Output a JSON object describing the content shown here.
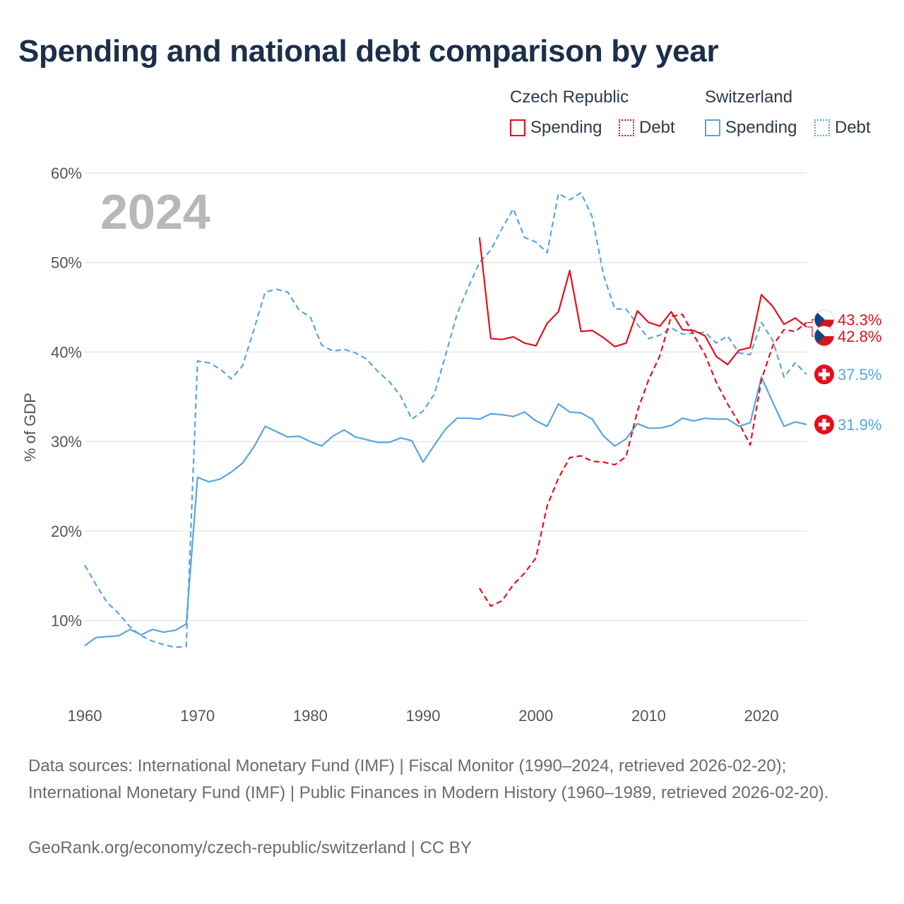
{
  "title": "Spending and national debt comparison by year",
  "legend": {
    "groups": [
      {
        "country": "Czech Republic",
        "color": "#e3101b",
        "items": [
          {
            "label": "Spending",
            "style": "solid"
          },
          {
            "label": "Debt",
            "style": "dotted"
          }
        ]
      },
      {
        "country": "Switzerland",
        "color": "#5aa4e3",
        "items": [
          {
            "label": "Spending",
            "style": "solid"
          },
          {
            "label": "Debt",
            "style": "dotted"
          }
        ]
      }
    ]
  },
  "year_label": "2024",
  "footer": {
    "sources": "Data sources: International Monetary Fund (IMF) | Fiscal Monitor (1990–2024, retrieved 2026-02-20); International Monetary Fund (IMF) | Public Finances in Modern History (1960–1989, retrieved 2026-02-20).",
    "attribution": "GeoRank.org/economy/czech-republic/switzerland | CC BY"
  },
  "chart_data": {
    "type": "line",
    "ylabel": "% of GDP",
    "ylim": [
      2,
      60
    ],
    "xlim": [
      1960,
      2024
    ],
    "yticks": [
      10,
      20,
      30,
      40,
      50,
      60
    ],
    "ytick_labels": [
      "10%",
      "20%",
      "30%",
      "40%",
      "50%",
      "60%"
    ],
    "xticks": [
      1960,
      1970,
      1980,
      1990,
      2000,
      2010,
      2020
    ],
    "xtick_labels": [
      "1960",
      "1970",
      "1980",
      "1990",
      "2000",
      "2010",
      "2020"
    ],
    "grid": true,
    "series": [
      {
        "name": "Switzerland Debt",
        "country": "Switzerland",
        "kind": "Debt",
        "color": "#5aa4e3",
        "dash": "8,5",
        "x": [
          1960,
          1961,
          1962,
          1963,
          1964,
          1965,
          1966,
          1967,
          1968,
          1969,
          1970,
          1971,
          1972,
          1973,
          1974,
          1975,
          1976,
          1977,
          1978,
          1979,
          1980,
          1981,
          1982,
          1983,
          1984,
          1985,
          1986,
          1987,
          1988,
          1989,
          1990,
          1991,
          1992,
          1993,
          1994,
          1995,
          1996,
          1997,
          1998,
          1999,
          2000,
          2001,
          2002,
          2003,
          2004,
          2005,
          2006,
          2007,
          2008,
          2009,
          2010,
          2011,
          2012,
          2013,
          2014,
          2015,
          2016,
          2017,
          2018,
          2019,
          2020,
          2021,
          2022,
          2023,
          2024
        ],
        "values": [
          16.2,
          14.0,
          12.0,
          10.8,
          9.3,
          8.3,
          7.7,
          7.3,
          7.0,
          7.1,
          39.0,
          38.8,
          38.1,
          37.0,
          38.5,
          42.5,
          46.7,
          47.0,
          46.7,
          44.7,
          43.9,
          40.8,
          40.1,
          40.3,
          39.9,
          39.2,
          37.8,
          36.7,
          35.1,
          32.5,
          33.4,
          35.3,
          39.7,
          44.2,
          47.2,
          50.0,
          51.4,
          53.8,
          56.0,
          52.8,
          52.3,
          51.1,
          57.7,
          57.0,
          57.8,
          55.1,
          48.6,
          44.8,
          44.8,
          43.1,
          41.5,
          41.9,
          42.7,
          42.0,
          42.1,
          42.2,
          41.0,
          41.8,
          39.9,
          39.7,
          43.3,
          41.3,
          37.2,
          38.8,
          37.5
        ],
        "end_label": "37.5%"
      },
      {
        "name": "Switzerland Spending",
        "country": "Switzerland",
        "kind": "Spending",
        "color": "#5aa4e3",
        "dash": "",
        "x": [
          1960,
          1961,
          1962,
          1963,
          1964,
          1965,
          1966,
          1967,
          1968,
          1969,
          1970,
          1971,
          1972,
          1973,
          1974,
          1975,
          1976,
          1977,
          1978,
          1979,
          1980,
          1981,
          1982,
          1983,
          1984,
          1985,
          1986,
          1987,
          1988,
          1989,
          1990,
          1991,
          1992,
          1993,
          1994,
          1995,
          1996,
          1997,
          1998,
          1999,
          2000,
          2001,
          2002,
          2003,
          2004,
          2005,
          2006,
          2007,
          2008,
          2009,
          2010,
          2011,
          2012,
          2013,
          2014,
          2015,
          2016,
          2017,
          2018,
          2019,
          2020,
          2021,
          2022,
          2023,
          2024
        ],
        "values": [
          7.2,
          8.1,
          8.2,
          8.3,
          9.0,
          8.4,
          9.0,
          8.7,
          8.9,
          9.6,
          26.0,
          25.5,
          25.8,
          26.6,
          27.6,
          29.4,
          31.7,
          31.1,
          30.5,
          30.6,
          30.0,
          29.5,
          30.6,
          31.3,
          30.5,
          30.2,
          29.9,
          29.9,
          30.4,
          30.1,
          27.7,
          29.6,
          31.4,
          32.6,
          32.6,
          32.5,
          33.1,
          33.0,
          32.8,
          33.3,
          32.3,
          31.7,
          34.2,
          33.3,
          33.2,
          32.5,
          30.6,
          29.5,
          30.3,
          32.0,
          31.5,
          31.5,
          31.8,
          32.6,
          32.3,
          32.6,
          32.5,
          32.5,
          31.7,
          32.1,
          37.2,
          34.4,
          31.7,
          32.2,
          31.9
        ],
        "end_label": "31.9%"
      },
      {
        "name": "Czech Republic Debt",
        "country": "Czech Republic",
        "kind": "Debt",
        "color": "#e3101b",
        "dash": "8,5",
        "x": [
          1995,
          1996,
          1997,
          1998,
          1999,
          2000,
          2001,
          2002,
          2003,
          2004,
          2005,
          2006,
          2007,
          2008,
          2009,
          2010,
          2011,
          2012,
          2013,
          2014,
          2015,
          2016,
          2017,
          2018,
          2019,
          2020,
          2021,
          2022,
          2023,
          2024
        ],
        "values": [
          13.6,
          11.6,
          12.2,
          14.0,
          15.3,
          17.0,
          22.8,
          25.9,
          28.2,
          28.4,
          27.8,
          27.7,
          27.4,
          28.3,
          33.4,
          36.9,
          39.6,
          44.0,
          44.2,
          41.9,
          39.7,
          36.6,
          34.2,
          32.1,
          29.6,
          36.9,
          40.7,
          42.5,
          42.3,
          43.3
        ],
        "end_label": "43.3%"
      },
      {
        "name": "Czech Republic Spending",
        "country": "Czech Republic",
        "kind": "Spending",
        "color": "#e3101b",
        "dash": "",
        "x": [
          1995,
          1996,
          1997,
          1998,
          1999,
          2000,
          2001,
          2002,
          2003,
          2004,
          2005,
          2006,
          2007,
          2008,
          2009,
          2010,
          2011,
          2012,
          2013,
          2014,
          2015,
          2016,
          2017,
          2018,
          2019,
          2020,
          2021,
          2022,
          2023,
          2024
        ],
        "values": [
          52.8,
          41.5,
          41.4,
          41.7,
          41.0,
          40.7,
          43.2,
          44.5,
          49.1,
          42.3,
          42.4,
          41.6,
          40.6,
          41.0,
          44.6,
          43.3,
          42.9,
          44.5,
          42.5,
          42.4,
          41.8,
          39.5,
          38.6,
          40.2,
          40.5,
          46.4,
          45.1,
          43.1,
          43.8,
          42.8
        ],
        "end_label": "42.8%"
      }
    ]
  }
}
